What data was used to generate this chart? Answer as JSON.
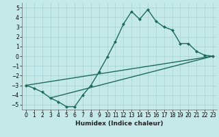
{
  "title": "",
  "xlabel": "Humidex (Indice chaleur)",
  "bg_color": "#c5e8e8",
  "grid_color": "#aad4d4",
  "line_color": "#1a6b5a",
  "xlim": [
    -0.5,
    23.5
  ],
  "ylim": [
    -5.5,
    5.5
  ],
  "yticks": [
    -5,
    -4,
    -3,
    -2,
    -1,
    0,
    1,
    2,
    3,
    4,
    5
  ],
  "xticks": [
    0,
    1,
    2,
    3,
    4,
    5,
    6,
    7,
    8,
    9,
    10,
    11,
    12,
    13,
    14,
    15,
    16,
    17,
    18,
    19,
    20,
    21,
    22,
    23
  ],
  "line1_x": [
    0,
    1,
    2,
    3,
    4,
    5,
    6,
    7,
    8,
    9,
    10,
    11,
    12,
    13,
    14,
    15,
    16,
    17,
    18,
    19,
    20,
    21,
    22,
    23
  ],
  "line1_y": [
    -3.0,
    -3.3,
    -3.7,
    -4.3,
    -4.7,
    -5.2,
    -5.2,
    -4.0,
    -3.0,
    -1.6,
    -0.1,
    1.5,
    3.3,
    4.6,
    3.8,
    4.8,
    3.6,
    3.0,
    2.7,
    1.3,
    1.3,
    0.5,
    0.1,
    0.0
  ],
  "line2_x": [
    0,
    23
  ],
  "line2_y": [
    -3.0,
    0.0
  ],
  "line3_x": [
    3,
    23
  ],
  "line3_y": [
    -4.3,
    0.0
  ],
  "marker_size": 2.5,
  "line_width": 1.0,
  "tick_fontsize": 5.5,
  "xlabel_fontsize": 6.5
}
